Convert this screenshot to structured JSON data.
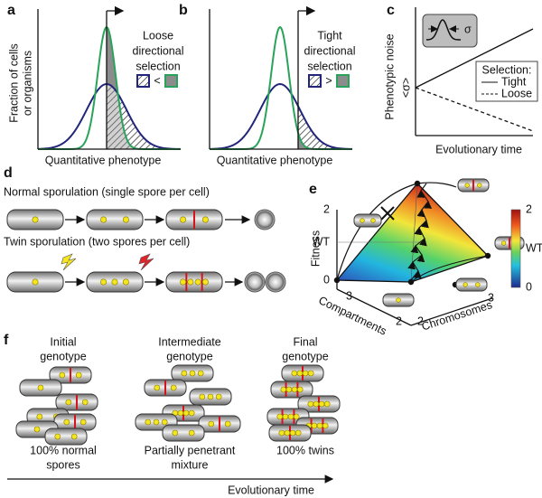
{
  "a": {
    "label": "a",
    "y_axis": [
      "Fraction of cells",
      "or organisms"
    ],
    "selection": [
      "Loose",
      "directional",
      "selection"
    ],
    "relation": "<",
    "x_axis": "Quantitative phenotype"
  },
  "b": {
    "label": "b",
    "selection": [
      "Tight",
      "directional",
      "selection"
    ],
    "relation": ">",
    "x_axis": "Quantitative phenotype"
  },
  "c": {
    "label": "c",
    "y_axis": "Phenotypic noise",
    "mean_noise": "<σ>",
    "sigma": "σ",
    "legend_title": "Selection:",
    "legend": [
      "Tight",
      "Loose"
    ],
    "x_axis": "Evolutionary time"
  },
  "d": {
    "label": "d",
    "normal": "Normal sporulation (single spore per cell)",
    "twin": "Twin sporulation (two spores per cell)"
  },
  "e": {
    "label": "e",
    "y_axis": "Fitness",
    "y_ticks": [
      "2",
      "WT",
      "0"
    ],
    "x_axis_left": "Compartments",
    "x_ticks_left": [
      "3",
      "2"
    ],
    "x_axis_right": "Chromosomes",
    "x_ticks_right": [
      "2",
      "3"
    ],
    "colorbar_ticks": [
      "2",
      "WT",
      "0"
    ]
  },
  "f": {
    "label": "f",
    "stages": [
      {
        "title": [
          "Initial",
          "genotype"
        ],
        "caption": [
          "100% normal",
          "spores"
        ]
      },
      {
        "title": [
          "Intermediate",
          "genotype"
        ],
        "caption": [
          "Partially penetrant",
          "mixture"
        ]
      },
      {
        "title": [
          "Final",
          "genotype"
        ],
        "caption": [
          "100% twins"
        ]
      }
    ],
    "x_axis": "Evolutionary time"
  }
}
